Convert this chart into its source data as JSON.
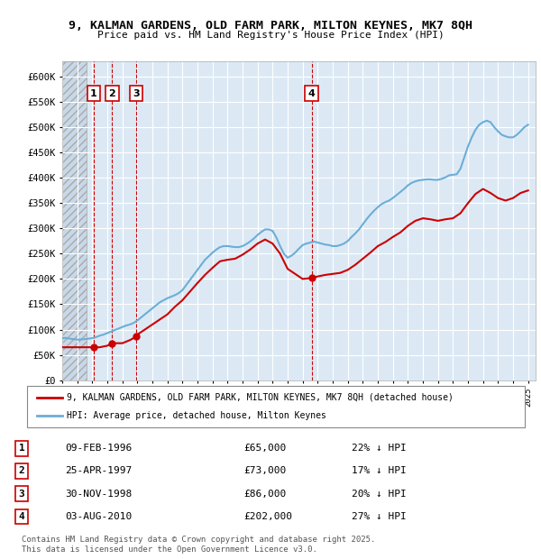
{
  "title_line1": "9, KALMAN GARDENS, OLD FARM PARK, MILTON KEYNES, MK7 8QH",
  "title_line2": "Price paid vs. HM Land Registry's House Price Index (HPI)",
  "ylabel": "",
  "xlim_start": 1994.0,
  "xlim_end": 2025.5,
  "ylim_min": 0,
  "ylim_max": 630000,
  "yticks": [
    0,
    50000,
    100000,
    150000,
    200000,
    250000,
    300000,
    350000,
    400000,
    450000,
    500000,
    550000,
    600000
  ],
  "ytick_labels": [
    "£0",
    "£50K",
    "£100K",
    "£150K",
    "£200K",
    "£250K",
    "£300K",
    "£350K",
    "£400K",
    "£450K",
    "£500K",
    "£550K",
    "£600K"
  ],
  "hpi_color": "#6baed6",
  "price_color": "#cc0000",
  "sale_marker_color": "#cc0000",
  "annotation_box_color": "#cc0000",
  "background_color": "#dce9f5",
  "hatch_area_color": "#c0c0c0",
  "grid_color": "#ffffff",
  "legend_label_red": "9, KALMAN GARDENS, OLD FARM PARK, MILTON KEYNES, MK7 8QH (detached house)",
  "legend_label_blue": "HPI: Average price, detached house, Milton Keynes",
  "sales": [
    {
      "num": 1,
      "date_num": 1996.1,
      "price": 65000,
      "label": "09-FEB-1996",
      "price_str": "£65,000",
      "pct": "22% ↓ HPI"
    },
    {
      "num": 2,
      "date_num": 1997.32,
      "price": 73000,
      "label": "25-APR-1997",
      "price_str": "£73,000",
      "pct": "17% ↓ HPI"
    },
    {
      "num": 3,
      "date_num": 1998.92,
      "price": 86000,
      "label": "30-NOV-1998",
      "price_str": "£86,000",
      "pct": "20% ↓ HPI"
    },
    {
      "num": 4,
      "date_num": 2010.59,
      "price": 202000,
      "label": "03-AUG-2010",
      "price_str": "£202,000",
      "pct": "27% ↓ HPI"
    }
  ],
  "footer_line1": "Contains HM Land Registry data © Crown copyright and database right 2025.",
  "footer_line2": "This data is licensed under the Open Government Licence v3.0.",
  "hpi_data_x": [
    1994.0,
    1994.25,
    1994.5,
    1994.75,
    1995.0,
    1995.25,
    1995.5,
    1995.75,
    1996.0,
    1996.25,
    1996.5,
    1996.75,
    1997.0,
    1997.25,
    1997.5,
    1997.75,
    1998.0,
    1998.25,
    1998.5,
    1998.75,
    1999.0,
    1999.25,
    1999.5,
    1999.75,
    2000.0,
    2000.25,
    2000.5,
    2000.75,
    2001.0,
    2001.25,
    2001.5,
    2001.75,
    2002.0,
    2002.25,
    2002.5,
    2002.75,
    2003.0,
    2003.25,
    2003.5,
    2003.75,
    2004.0,
    2004.25,
    2004.5,
    2004.75,
    2005.0,
    2005.25,
    2005.5,
    2005.75,
    2006.0,
    2006.25,
    2006.5,
    2006.75,
    2007.0,
    2007.25,
    2007.5,
    2007.75,
    2008.0,
    2008.25,
    2008.5,
    2008.75,
    2009.0,
    2009.25,
    2009.5,
    2009.75,
    2010.0,
    2010.25,
    2010.5,
    2010.75,
    2011.0,
    2011.25,
    2011.5,
    2011.75,
    2012.0,
    2012.25,
    2012.5,
    2012.75,
    2013.0,
    2013.25,
    2013.5,
    2013.75,
    2014.0,
    2014.25,
    2014.5,
    2014.75,
    2015.0,
    2015.25,
    2015.5,
    2015.75,
    2016.0,
    2016.25,
    2016.5,
    2016.75,
    2017.0,
    2017.25,
    2017.5,
    2017.75,
    2018.0,
    2018.25,
    2018.5,
    2018.75,
    2019.0,
    2019.25,
    2019.5,
    2019.75,
    2020.0,
    2020.25,
    2020.5,
    2020.75,
    2021.0,
    2021.25,
    2021.5,
    2021.75,
    2022.0,
    2022.25,
    2022.5,
    2022.75,
    2023.0,
    2023.25,
    2023.5,
    2023.75,
    2024.0,
    2024.25,
    2024.5,
    2024.75,
    2025.0
  ],
  "hpi_data_y": [
    83000,
    83500,
    82000,
    81000,
    80000,
    80500,
    81000,
    82000,
    83000,
    85000,
    88000,
    90000,
    93000,
    96000,
    99000,
    102000,
    105000,
    108000,
    110000,
    113000,
    118000,
    124000,
    130000,
    136000,
    142000,
    148000,
    154000,
    158000,
    162000,
    165000,
    168000,
    172000,
    178000,
    188000,
    198000,
    208000,
    218000,
    228000,
    238000,
    245000,
    252000,
    258000,
    263000,
    265000,
    265000,
    264000,
    263000,
    263000,
    265000,
    269000,
    274000,
    280000,
    287000,
    293000,
    298000,
    298000,
    295000,
    282000,
    265000,
    250000,
    242000,
    246000,
    252000,
    260000,
    267000,
    270000,
    272000,
    274000,
    272000,
    270000,
    268000,
    267000,
    265000,
    265000,
    267000,
    270000,
    275000,
    283000,
    290000,
    298000,
    308000,
    318000,
    327000,
    335000,
    342000,
    348000,
    352000,
    355000,
    360000,
    366000,
    372000,
    378000,
    385000,
    390000,
    393000,
    395000,
    396000,
    397000,
    397000,
    396000,
    396000,
    398000,
    401000,
    405000,
    406000,
    407000,
    418000,
    440000,
    462000,
    480000,
    495000,
    505000,
    510000,
    513000,
    510000,
    500000,
    492000,
    485000,
    482000,
    480000,
    480000,
    485000,
    492000,
    500000,
    505000
  ],
  "price_data_x": [
    1994.0,
    1994.5,
    1995.0,
    1995.5,
    1996.0,
    1996.1,
    1996.5,
    1997.0,
    1997.32,
    1997.75,
    1998.0,
    1998.5,
    1998.92,
    1999.0,
    1999.5,
    2000.0,
    2000.5,
    2001.0,
    2001.5,
    2002.0,
    2002.5,
    2003.0,
    2003.5,
    2004.0,
    2004.5,
    2005.0,
    2005.5,
    2006.0,
    2006.5,
    2007.0,
    2007.5,
    2008.0,
    2008.5,
    2009.0,
    2009.5,
    2010.0,
    2010.59,
    2011.0,
    2011.5,
    2012.0,
    2012.5,
    2013.0,
    2013.5,
    2014.0,
    2014.5,
    2015.0,
    2015.5,
    2016.0,
    2016.5,
    2017.0,
    2017.5,
    2018.0,
    2018.5,
    2019.0,
    2019.5,
    2020.0,
    2020.5,
    2021.0,
    2021.5,
    2022.0,
    2022.5,
    2023.0,
    2023.5,
    2024.0,
    2024.5,
    2025.0
  ],
  "price_data_y": [
    65000,
    65000,
    65000,
    65000,
    65000,
    65000,
    65000,
    68000,
    73000,
    73000,
    73000,
    79000,
    86000,
    90000,
    100000,
    110000,
    120000,
    130000,
    145000,
    158000,
    175000,
    192000,
    208000,
    222000,
    235000,
    238000,
    240000,
    248000,
    258000,
    270000,
    278000,
    270000,
    250000,
    220000,
    210000,
    200000,
    202000,
    205000,
    208000,
    210000,
    212000,
    218000,
    228000,
    240000,
    252000,
    265000,
    273000,
    283000,
    292000,
    305000,
    315000,
    320000,
    318000,
    315000,
    318000,
    320000,
    330000,
    350000,
    368000,
    378000,
    370000,
    360000,
    355000,
    360000,
    370000,
    375000
  ]
}
